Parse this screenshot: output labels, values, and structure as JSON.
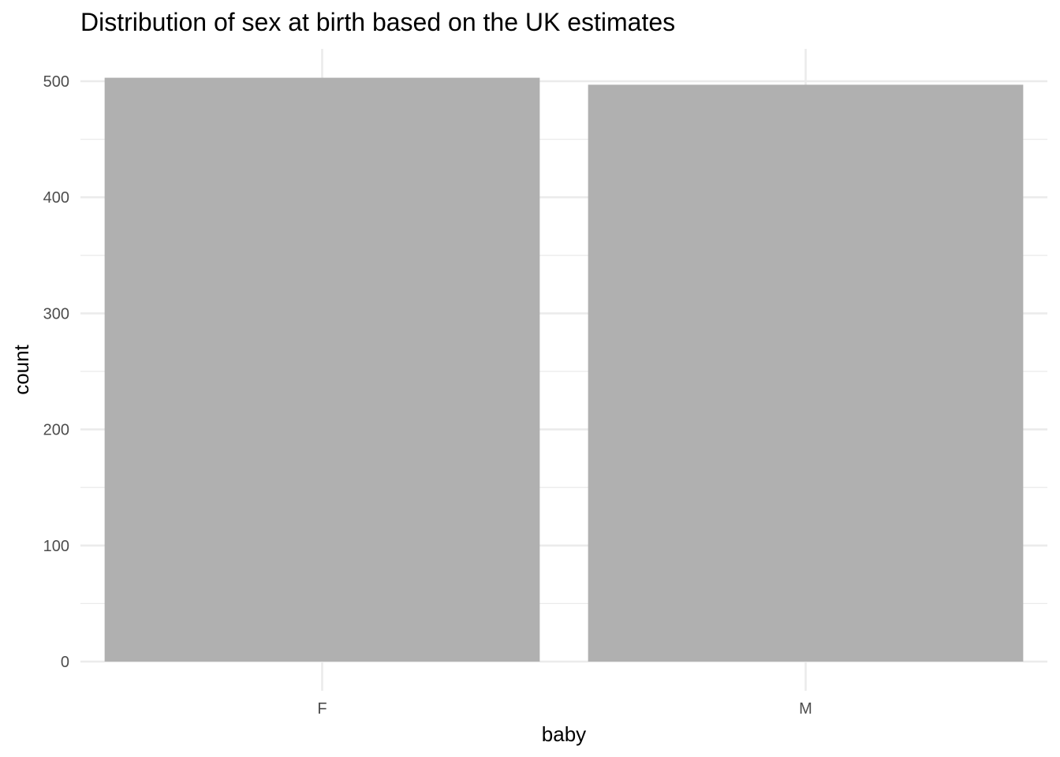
{
  "chart_data": {
    "type": "bar",
    "title": "Distribution of sex at birth based on the UK estimates",
    "xlabel": "baby",
    "ylabel": "count",
    "categories": [
      "F",
      "M"
    ],
    "values": [
      503,
      497
    ],
    "ylim": [
      0,
      525
    ],
    "yticks": [
      0,
      100,
      200,
      300,
      400,
      500
    ],
    "yticks_minor": [
      50,
      150,
      250,
      350,
      450
    ],
    "grid": true,
    "legend": "none",
    "bar_color": "#b0b0b0",
    "grid_color": "#ebebeb",
    "tick_label_color": "#4d4d4d"
  }
}
